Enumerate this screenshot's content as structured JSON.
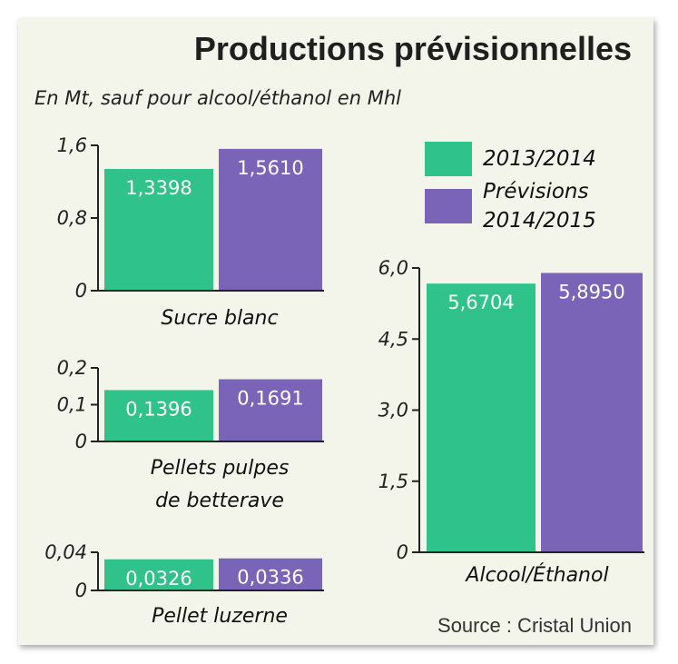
{
  "title": "Productions prévisionnelles",
  "subtitle": "En Mt, sauf pour alcool/éthanol en Mhl",
  "source": "Source : Cristal Union",
  "colors": {
    "series1": "#2fc28a",
    "series2": "#7a64b8",
    "axis": "#222222"
  },
  "legend": [
    {
      "label_lines": [
        "2013/2014"
      ],
      "color": "#2fc28a"
    },
    {
      "label_lines": [
        "Prévisions",
        "2014/2015"
      ],
      "color": "#7a64b8"
    }
  ],
  "chart_data": [
    {
      "type": "bar",
      "category": "Sucre blanc",
      "category_lines": [
        "Sucre blanc"
      ],
      "series": [
        "2013/2014",
        "Prévisions 2014/2015"
      ],
      "values": [
        1.3398,
        1.561
      ],
      "value_labels": [
        "1,3398",
        "1,5610"
      ],
      "ylim": [
        0,
        1.6
      ],
      "ticks": [
        {
          "v": 0,
          "label": "0"
        },
        {
          "v": 0.8,
          "label": "0,8"
        },
        {
          "v": 1.6,
          "label": "1,6"
        }
      ]
    },
    {
      "type": "bar",
      "category": "Pellets pulpes de betterave",
      "category_lines": [
        "Pellets pulpes",
        "de betterave"
      ],
      "series": [
        "2013/2014",
        "Prévisions 2014/2015"
      ],
      "values": [
        0.1396,
        0.1691
      ],
      "value_labels": [
        "0,1396",
        "0,1691"
      ],
      "ylim": [
        0,
        0.2
      ],
      "ticks": [
        {
          "v": 0,
          "label": "0"
        },
        {
          "v": 0.1,
          "label": "0,1"
        },
        {
          "v": 0.2,
          "label": "0,2"
        }
      ]
    },
    {
      "type": "bar",
      "category": "Pellet luzerne",
      "category_lines": [
        "Pellet luzerne"
      ],
      "series": [
        "2013/2014",
        "Prévisions 2014/2015"
      ],
      "values": [
        0.0326,
        0.0336
      ],
      "value_labels": [
        "0,0326",
        "0,0336"
      ],
      "ylim": [
        0,
        0.04
      ],
      "ticks": [
        {
          "v": 0,
          "label": "0"
        },
        {
          "v": 0.04,
          "label": "0,04"
        }
      ]
    },
    {
      "type": "bar",
      "category": "Alcool/Éthanol",
      "category_lines": [
        "Alcool/Éthanol"
      ],
      "series": [
        "2013/2014",
        "Prévisions 2014/2015"
      ],
      "values": [
        5.6704,
        5.895
      ],
      "value_labels": [
        "5,6704",
        "5,8950"
      ],
      "ylim": [
        0,
        6.0
      ],
      "ticks": [
        {
          "v": 0,
          "label": "0"
        },
        {
          "v": 1.5,
          "label": "1,5"
        },
        {
          "v": 3.0,
          "label": "3,0"
        },
        {
          "v": 4.5,
          "label": "4,5"
        },
        {
          "v": 6.0,
          "label": "6,0"
        }
      ]
    }
  ]
}
